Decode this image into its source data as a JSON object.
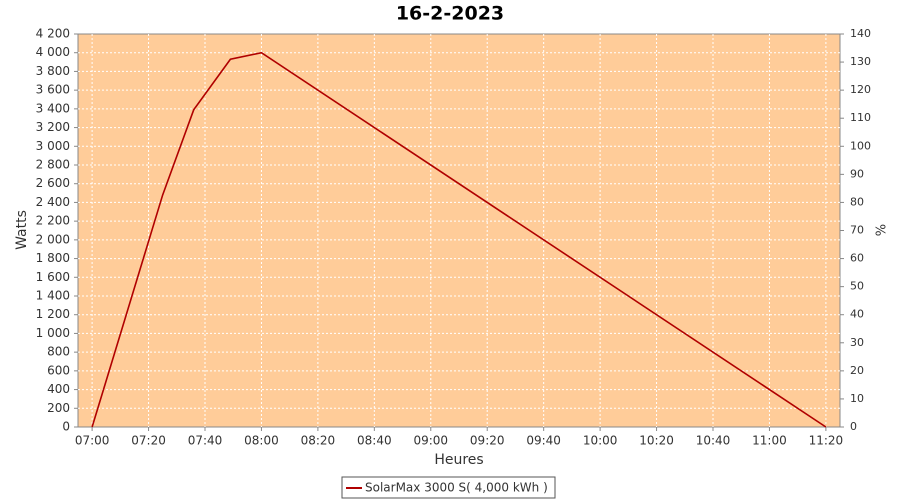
{
  "chart_data": {
    "type": "line",
    "title": "16-2-2023",
    "x_label": "Heures",
    "y_label": "Watts",
    "y2_label": "%",
    "x": [
      420,
      445,
      456,
      469,
      480,
      680
    ],
    "series": [
      {
        "name": "SolarMax 3000 S( 4,000 kWh )",
        "color": "#b00000",
        "values": [
          0,
          2480,
          3390,
          3930,
          4000,
          0
        ]
      }
    ],
    "xlim": [
      415,
      685
    ],
    "xticks": [
      {
        "value": 420,
        "label": "07:00"
      },
      {
        "value": 440,
        "label": "07:20"
      },
      {
        "value": 460,
        "label": "07:40"
      },
      {
        "value": 480,
        "label": "08:00"
      },
      {
        "value": 500,
        "label": "08:20"
      },
      {
        "value": 520,
        "label": "08:40"
      },
      {
        "value": 540,
        "label": "09:00"
      },
      {
        "value": 560,
        "label": "09:20"
      },
      {
        "value": 580,
        "label": "09:40"
      },
      {
        "value": 600,
        "label": "10:00"
      },
      {
        "value": 620,
        "label": "10:20"
      },
      {
        "value": 640,
        "label": "10:40"
      },
      {
        "value": 660,
        "label": "11:00"
      },
      {
        "value": 680,
        "label": "11:20"
      }
    ],
    "ylim": [
      0,
      4200
    ],
    "yticks": [
      0,
      200,
      400,
      600,
      800,
      {
        "value": 1000,
        "label": "1 000"
      },
      {
        "value": 1200,
        "label": "1 200"
      },
      {
        "value": 1400,
        "label": "1 400"
      },
      {
        "value": 1600,
        "label": "1 600"
      },
      {
        "value": 1800,
        "label": "1 800"
      },
      {
        "value": 2000,
        "label": "2 000"
      },
      {
        "value": 2200,
        "label": "2 200"
      },
      {
        "value": 2400,
        "label": "2 400"
      },
      {
        "value": 2600,
        "label": "2 600"
      },
      {
        "value": 2800,
        "label": "2 800"
      },
      {
        "value": 3000,
        "label": "3 000"
      },
      {
        "value": 3200,
        "label": "3 200"
      },
      {
        "value": 3400,
        "label": "3 400"
      },
      {
        "value": 3600,
        "label": "3 600"
      },
      {
        "value": 3800,
        "label": "3 800"
      },
      {
        "value": 4000,
        "label": "4 000"
      },
      {
        "value": 4200,
        "label": "4 200"
      }
    ],
    "y2lim": [
      0,
      140
    ],
    "y2ticks": [
      0,
      10,
      20,
      30,
      40,
      50,
      60,
      70,
      80,
      90,
      100,
      110,
      120,
      130,
      140
    ],
    "grid": true,
    "plot_background": "#ffcc99",
    "legend": "bottom"
  }
}
